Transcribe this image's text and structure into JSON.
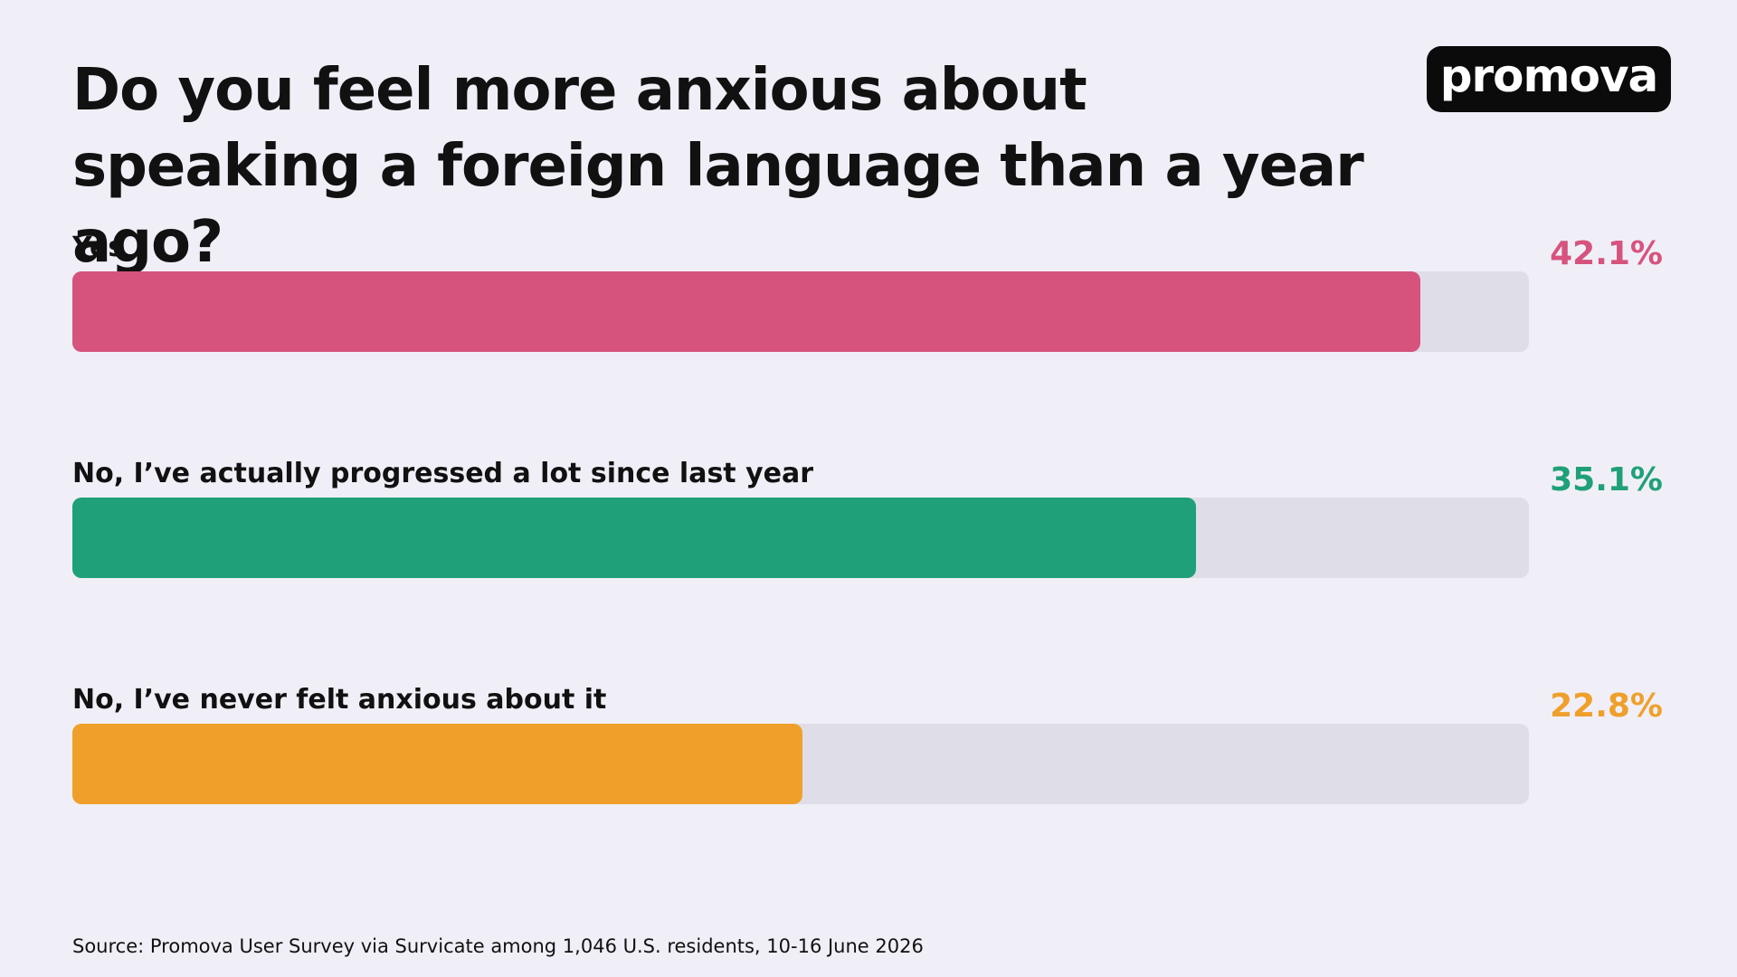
{
  "logo": "promova",
  "chart_data": {
    "type": "bar",
    "orientation": "horizontal",
    "title": "Do you feel more anxious about speaking a foreign language than a year ago?",
    "categories": [
      "Yes",
      "No, I’ve actually progressed a lot since last year",
      "No, I’ve never felt anxious about it"
    ],
    "values": [
      42.1,
      35.1,
      22.8
    ],
    "value_labels": [
      "42.1%",
      "35.1%",
      "22.8%"
    ],
    "colors": [
      "#d6537d",
      "#1fa078",
      "#efa02b"
    ],
    "xlim": [
      0,
      45.5
    ],
    "source": "Source: Promova User Survey via Survicate among 1,046 U.S. residents, 10-16 June 2026"
  }
}
